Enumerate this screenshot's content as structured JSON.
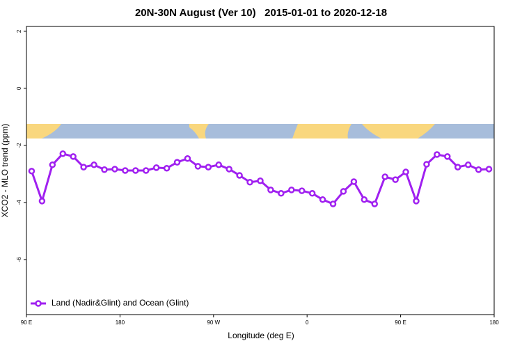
{
  "chart_data": {
    "type": "line",
    "title": "20N-30N August (Ver 10)   2015-01-01 to 2020-12-18",
    "x_label": "Longitude (deg E)",
    "y_label": "XCO2 - MLO trend (ppm)",
    "x": [
      95,
      105,
      115,
      125,
      135,
      145,
      155,
      165,
      175,
      185,
      195,
      205,
      215,
      225,
      235,
      245,
      255,
      265,
      275,
      285,
      295,
      305,
      315,
      325,
      335,
      345,
      355,
      365,
      375,
      385,
      395,
      405,
      415,
      425,
      435,
      445,
      455,
      465,
      475,
      485,
      495,
      505,
      515,
      525,
      535
    ],
    "series": [
      {
        "name": "Land (Nadir&Glint) and Ocean (Glint)",
        "color": "#a020f0",
        "values": [
          -2.9,
          -3.95,
          -2.68,
          -2.29,
          -2.39,
          -2.76,
          -2.68,
          -2.85,
          -2.83,
          -2.88,
          -2.88,
          -2.88,
          -2.78,
          -2.8,
          -2.59,
          -2.46,
          -2.73,
          -2.76,
          -2.68,
          -2.83,
          -3.05,
          -3.29,
          -3.24,
          -3.56,
          -3.68,
          -3.56,
          -3.59,
          -3.68,
          -3.9,
          -4.05,
          -3.61,
          -3.27,
          -3.9,
          -4.05,
          -3.1,
          -3.2,
          -2.93,
          -3.95,
          -2.66,
          -2.32,
          -2.39,
          -2.76,
          -2.68,
          -2.85,
          -2.83
        ]
      }
    ],
    "xlim": [
      90,
      540
    ],
    "xticks": [
      {
        "value": 90,
        "label": "90 E"
      },
      180,
      {
        "value": 270,
        "label": "90 W"
      },
      {
        "value": 360,
        "label": "0"
      },
      {
        "value": 450,
        "label": "90 E"
      },
      {
        "value": 540,
        "label": "180"
      }
    ],
    "ylim": [
      -7.93,
      2.17
    ],
    "yticks": [
      2,
      0,
      -2,
      -4,
      -6
    ],
    "legend": "bottom-left"
  }
}
